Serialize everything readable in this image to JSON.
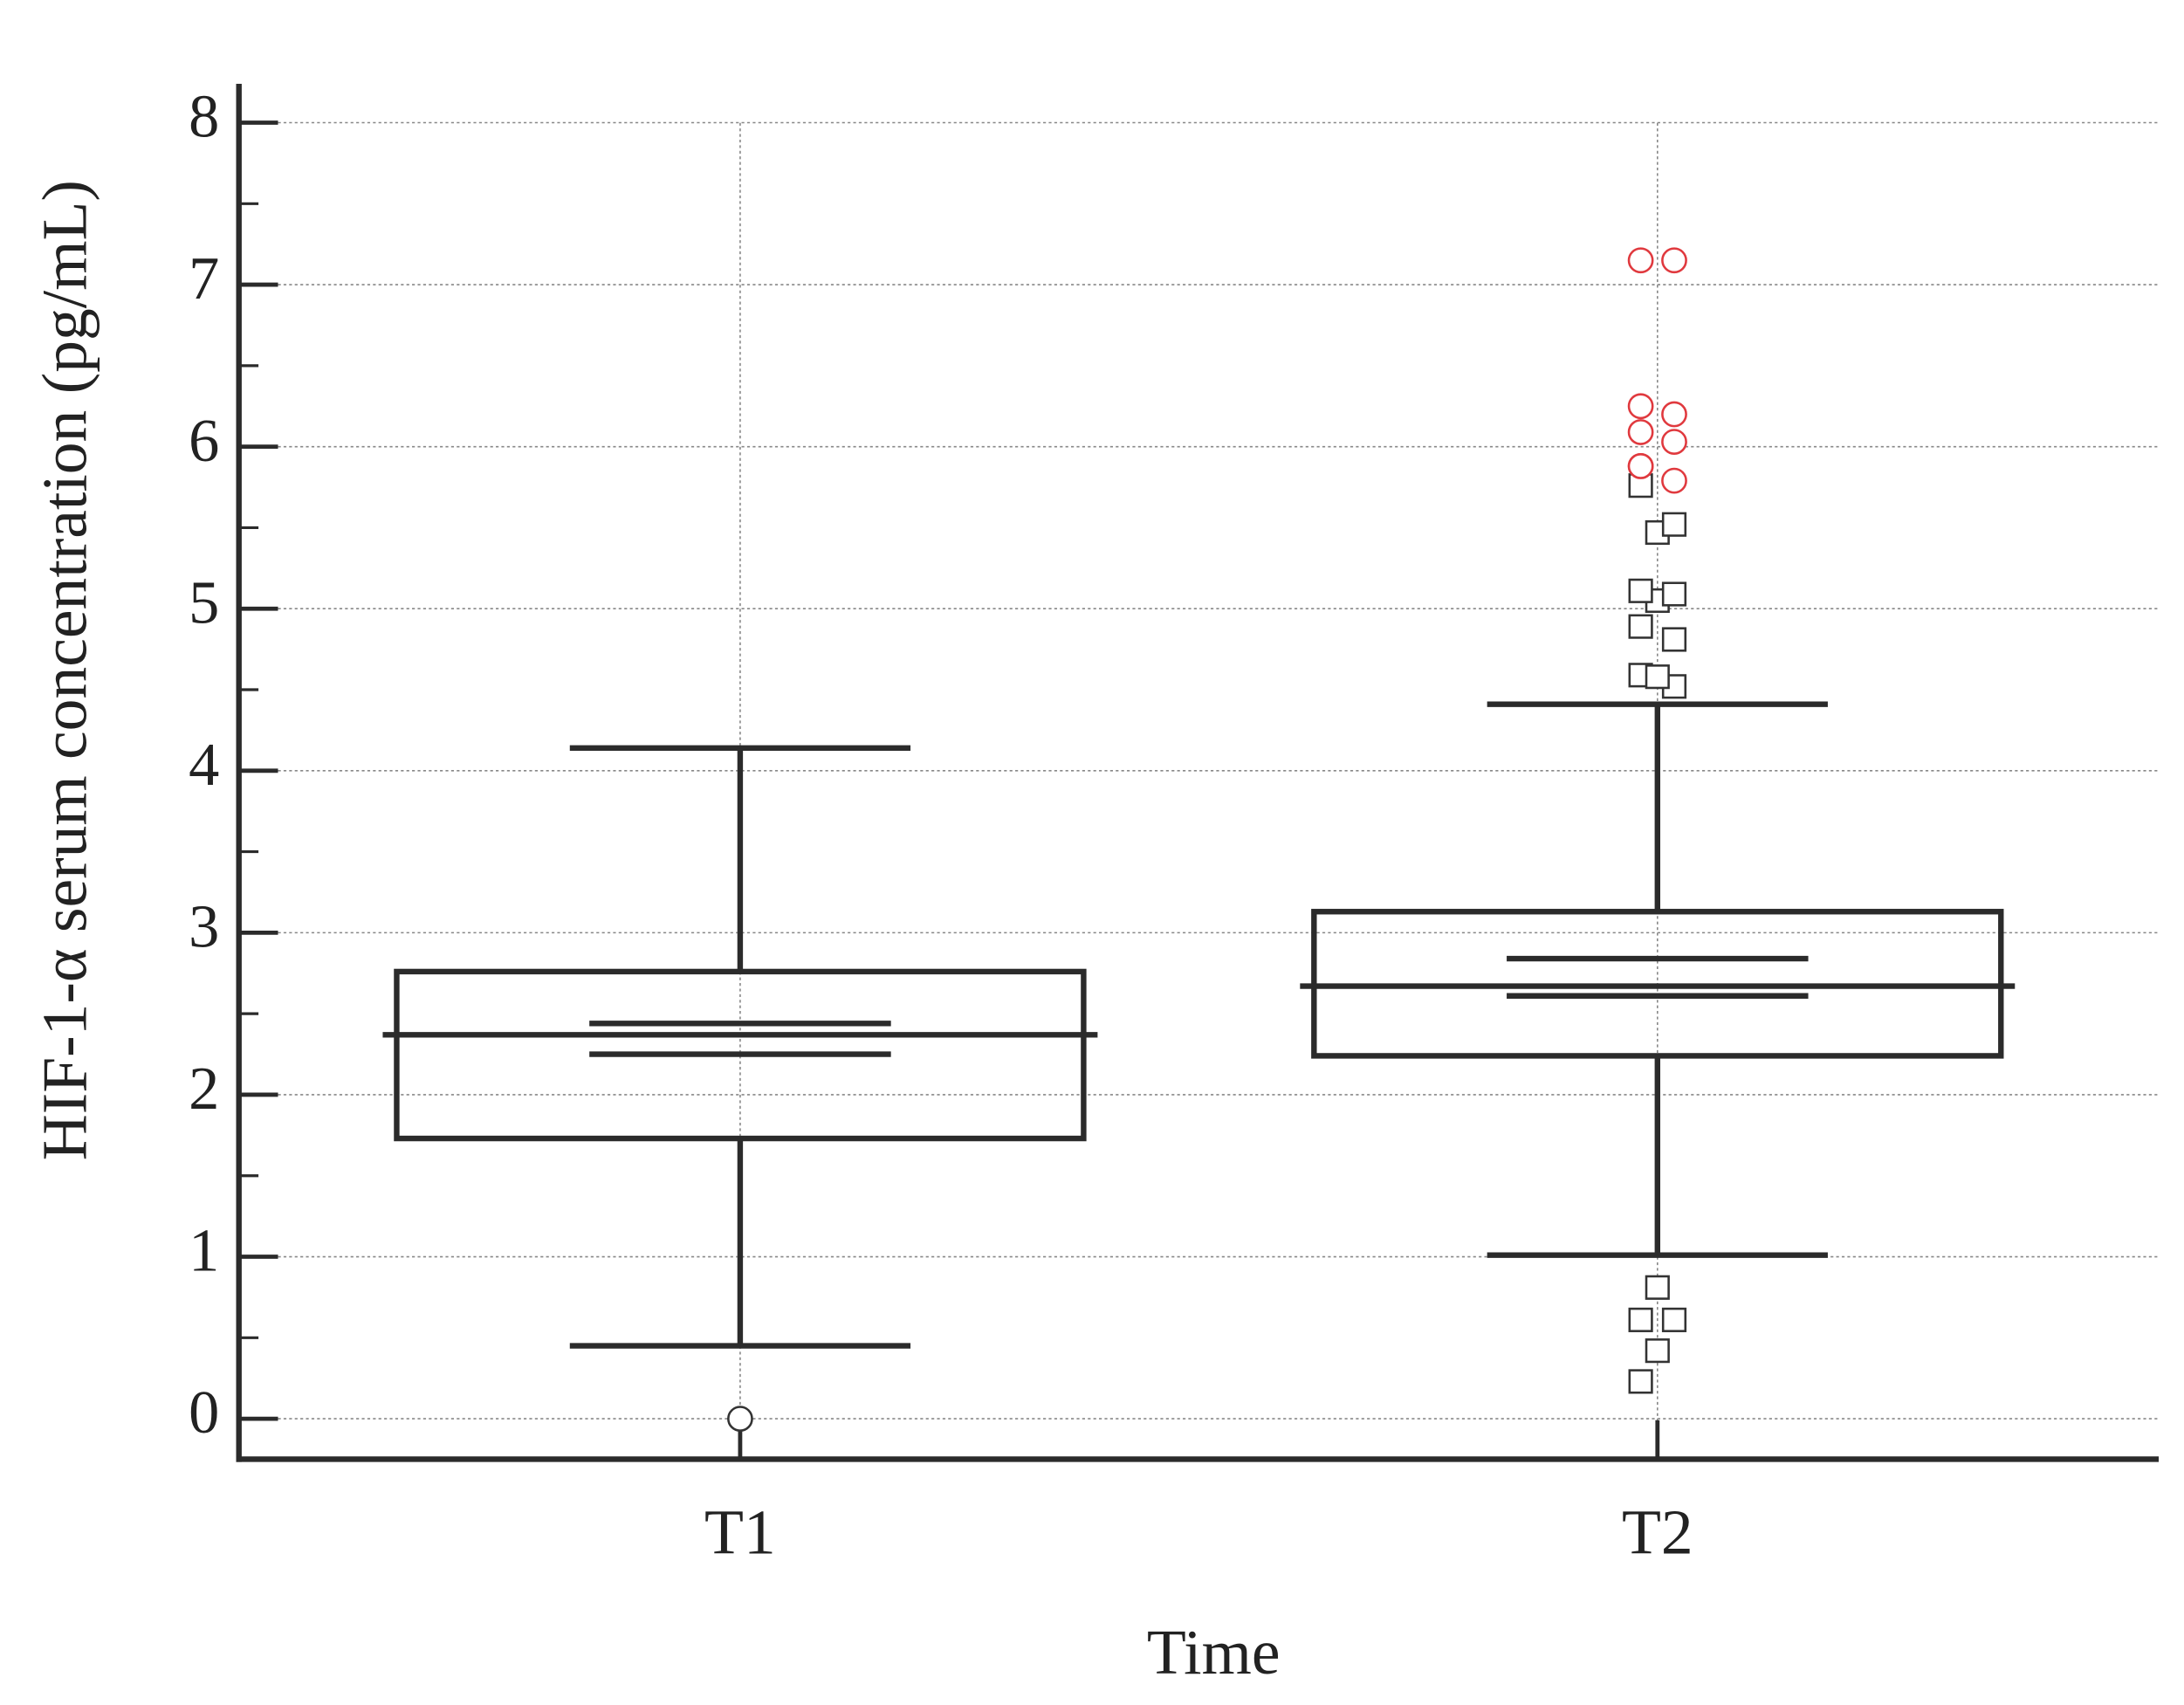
{
  "chart_data": {
    "type": "box",
    "y_label": "HIF-1-α serum concentration (pg/mL)",
    "x_label": "Time",
    "categories": [
      "T1",
      "T2"
    ],
    "ylim": [
      -0.25,
      8.24
    ],
    "yticks": [
      0,
      1,
      2,
      3,
      4,
      5,
      6,
      7,
      8
    ],
    "grid": true,
    "outlier_color": "#333333",
    "boxes": [
      {
        "whisker_low": 0.45,
        "q1": 1.73,
        "median": 2.37,
        "q3": 2.76,
        "whisker_high": 4.14,
        "ci_low": 2.25,
        "ci_high": 2.44,
        "outliers": [],
        "far_outliers": [
          0
        ],
        "far_outlier_color": "#333333"
      },
      {
        "whisker_low": 1.01,
        "q1": 2.24,
        "median": 2.67,
        "q3": 3.13,
        "whisker_high": 4.41,
        "ci_low": 2.61,
        "ci_high": 2.84,
        "outliers": [
          0.23,
          0.42,
          0.61,
          0.61,
          0.81,
          4.52,
          4.59,
          4.58,
          4.81,
          4.89,
          5.05,
          5.09,
          5.11,
          5.47,
          5.52,
          5.76
        ],
        "far_outliers": [
          5.88,
          5.79,
          5.88,
          6.03,
          6.09,
          6.2,
          6.25,
          7.15,
          7.15
        ],
        "far_outlier_color": "#e0393e"
      }
    ]
  }
}
